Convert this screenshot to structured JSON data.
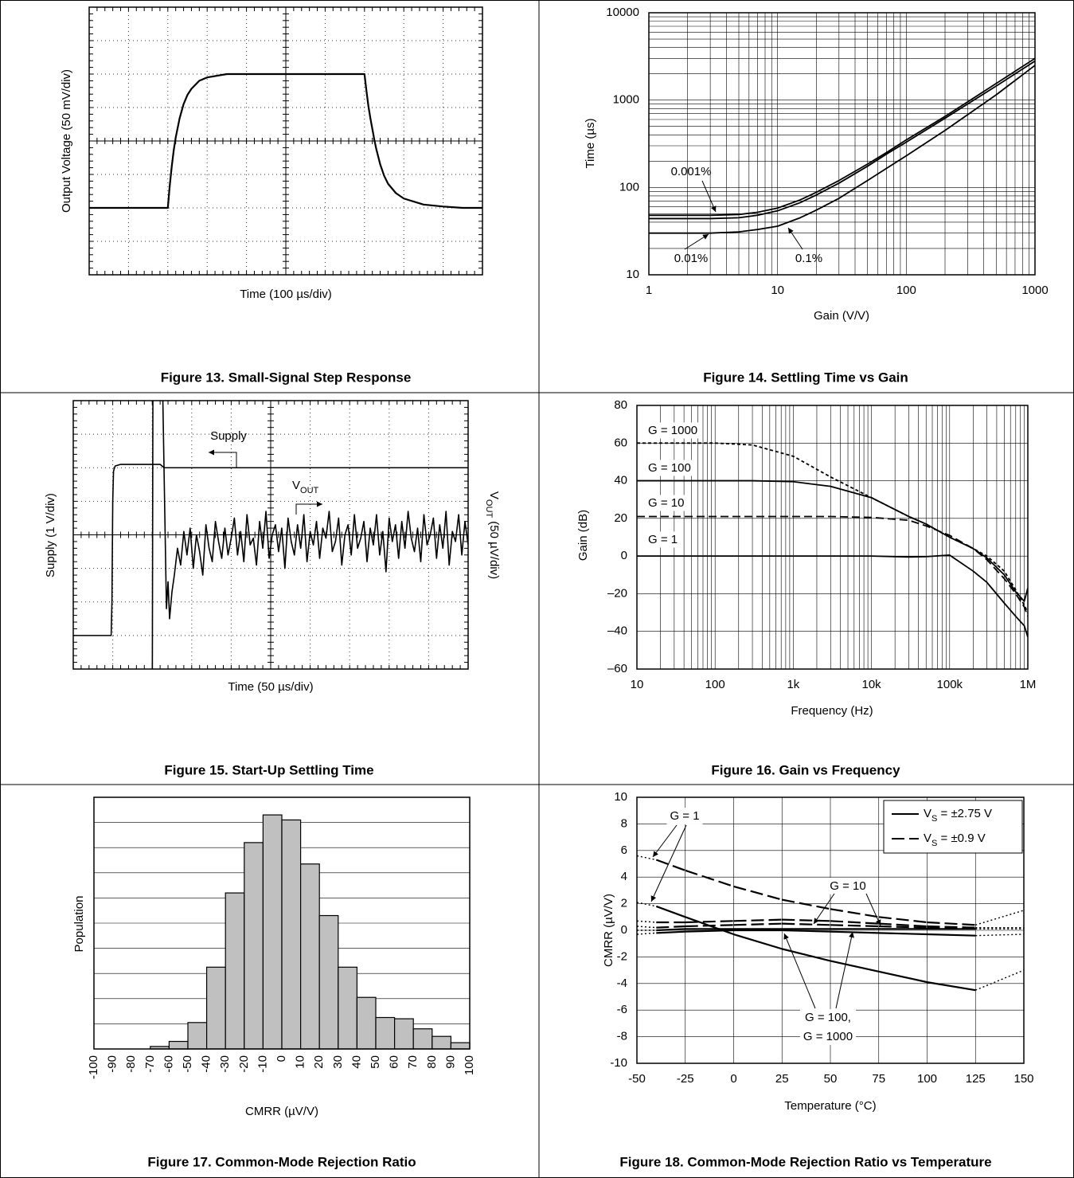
{
  "chart_data": [
    {
      "type": "line",
      "caption": "Figure 13. Small-Signal Step Response",
      "xlabel": "Time (100 µs/div)",
      "ylabel": "Output Voltage (50 mV/div)",
      "xlim": [
        0,
        1000
      ],
      "ylim": [
        -200,
        200
      ],
      "xticks": [
        0,
        100,
        200,
        300,
        400,
        500,
        600,
        700,
        800,
        900,
        1000
      ],
      "yticks": [
        -200,
        -150,
        -100,
        -50,
        0,
        50,
        100,
        150,
        200
      ],
      "xtick_labels": false,
      "ytick_labels": false,
      "grid": "both",
      "grid_style": "dotted",
      "center_cross": true,
      "x": [
        0,
        200,
        205,
        210,
        215,
        220,
        230,
        240,
        250,
        260,
        280,
        300,
        350,
        700,
        705,
        710,
        715,
        720,
        725,
        730,
        740,
        750,
        760,
        780,
        800,
        850,
        900,
        950,
        1000
      ],
      "series": [
        {
          "color": "#000000",
          "values": [
            -100,
            -100,
            -66,
            -38,
            -14,
            5,
            34,
            55,
            69,
            78,
            90,
            95,
            100,
            100,
            75,
            52,
            34,
            18,
            2,
            -12,
            -35,
            -52,
            -64,
            -78,
            -86,
            -95,
            -98,
            -100,
            -100
          ]
        }
      ]
    },
    {
      "type": "line",
      "caption": "Figure 14. Settling Time vs Gain",
      "xlabel": "Gain (V/V)",
      "ylabel": "Time (µs)",
      "xscale": "log",
      "yscale": "log",
      "xlim": [
        1,
        1000
      ],
      "ylim": [
        10,
        10000
      ],
      "xticks": [
        1,
        10,
        100,
        1000
      ],
      "yticks": [
        10,
        100,
        1000,
        10000
      ],
      "grid": "both",
      "minor_grid": true,
      "x": [
        1,
        2,
        3,
        5,
        7,
        10,
        15,
        20,
        30,
        50,
        70,
        100,
        200,
        500,
        1000
      ],
      "series": [
        {
          "name": "0.001%",
          "color": "#000000",
          "values": [
            48,
            48,
            48,
            49,
            52,
            58,
            72,
            88,
            120,
            185,
            250,
            350,
            650,
            1550,
            3000
          ]
        },
        {
          "name": "0.01%",
          "color": "#000000",
          "values": [
            44,
            44,
            44,
            45,
            48,
            54,
            67,
            82,
            112,
            175,
            240,
            330,
            620,
            1450,
            2800
          ]
        },
        {
          "name": "0.1%",
          "color": "#000000",
          "values": [
            30,
            30,
            30,
            31,
            33,
            36,
            45,
            55,
            75,
            120,
            165,
            230,
            450,
            1150,
            2500
          ]
        }
      ]
    },
    {
      "type": "line",
      "caption": "Figure 15. Start-Up Settling Time",
      "xlabel": "Time (50 µs/div)",
      "ylabel": "Supply (1 V/div)",
      "y2label": [
        "V",
        "OUT",
        " (50 µV/div)"
      ],
      "xlim": [
        0,
        500
      ],
      "ylim": [
        -4,
        4
      ],
      "y2lim": [
        -200,
        200
      ],
      "xticks": [
        0,
        50,
        100,
        150,
        200,
        250,
        300,
        350,
        400,
        450,
        500
      ],
      "yticks": [
        -4,
        -3,
        -2,
        -1,
        0,
        1,
        2,
        3,
        4
      ],
      "xtick_labels": false,
      "ytick_labels": false,
      "grid": "both",
      "grid_style": "dotted",
      "center_cross": true,
      "annotations": [
        [
          "Supply"
        ],
        [
          "V",
          "OUT"
        ]
      ],
      "series": [
        {
          "color": "#000000",
          "x": [
            0,
            48,
            49,
            50,
            51,
            53,
            60,
            110,
            115,
            500
          ],
          "values": [
            -3.0,
            -3.0,
            -2,
            1,
            1.9,
            2.05,
            2.1,
            2.1,
            2.0,
            2.0
          ]
        },
        {
          "color": "#000000",
          "axis": "y2",
          "x": [
            100,
            101,
            112,
            118,
            120,
            122,
            125,
            128,
            132,
            136,
            140,
            144,
            148,
            152,
            156,
            160,
            164,
            168,
            172,
            176,
            180,
            184,
            188,
            192,
            196,
            200,
            204,
            208,
            212,
            216,
            220,
            224,
            228,
            232,
            236,
            240,
            244,
            248,
            252,
            256,
            260,
            264,
            268,
            272,
            276,
            280,
            284,
            288,
            292,
            296,
            300,
            304,
            308,
            312,
            316,
            320,
            324,
            328,
            332,
            336,
            340,
            344,
            348,
            352,
            356,
            360,
            364,
            368,
            372,
            376,
            380,
            384,
            388,
            392,
            396,
            400,
            404,
            408,
            412,
            416,
            420,
            424,
            428,
            432,
            436,
            440,
            444,
            448,
            452,
            456,
            460,
            464,
            468,
            472,
            476,
            480,
            484,
            488,
            492,
            496,
            500
          ],
          "values": [
            -300,
            300,
            300,
            -110,
            -70,
            -125,
            -85,
            -60,
            -20,
            -45,
            5,
            -30,
            10,
            -50,
            0,
            -25,
            -60,
            15,
            -20,
            -40,
            20,
            -10,
            -35,
            10,
            -30,
            -5,
            25,
            -30,
            5,
            -40,
            30,
            -15,
            -5,
            -45,
            20,
            -20,
            35,
            -35,
            0,
            15,
            -25,
            10,
            -50,
            25,
            -10,
            -30,
            15,
            -20,
            30,
            -40,
            5,
            -15,
            20,
            -35,
            10,
            -5,
            35,
            -25,
            -10,
            25,
            -45,
            0,
            15,
            -30,
            30,
            -20,
            -5,
            20,
            -40,
            10,
            -15,
            30,
            -30,
            5,
            -55,
            25,
            -10,
            15,
            -35,
            20,
            -20,
            35,
            -5,
            -25,
            10,
            -40,
            30,
            -15,
            0,
            25,
            -35,
            15,
            -20,
            35,
            -45,
            5,
            -10,
            30,
            -30,
            20,
            -15
          ]
        }
      ]
    },
    {
      "type": "line",
      "caption": "Figure 16. Gain vs Frequency",
      "xlabel": "Frequency (Hz)",
      "ylabel": "Gain (dB)",
      "xscale": "log",
      "xlim": [
        10,
        1000000
      ],
      "ylim": [
        -60,
        80
      ],
      "xticks": [
        10,
        100,
        {
          "value": 1000,
          "label": "1k"
        },
        {
          "value": 10000,
          "label": "10k"
        },
        {
          "value": 100000,
          "label": "100k"
        },
        {
          "value": 1000000,
          "label": "1M"
        }
      ],
      "yticks": [
        {
          "value": -60,
          "label": "–60"
        },
        {
          "value": -40,
          "label": "–40"
        },
        {
          "value": -20,
          "label": "–20"
        },
        0,
        20,
        40,
        60,
        80
      ],
      "grid": "both",
      "minor_grid": true,
      "x": [
        10,
        100,
        300,
        1000,
        3000,
        10000,
        30000,
        50000,
        100000,
        200000,
        300000,
        500000,
        700000,
        900000,
        1000000
      ],
      "series": [
        {
          "name": "G = 1",
          "color": "#000000",
          "style": "solid",
          "values": [
            0,
            0,
            0,
            0,
            0,
            0,
            -0.5,
            -0.3,
            0.5,
            -8,
            -14,
            -25,
            -32,
            -37,
            -43
          ]
        },
        {
          "name": "G = 10",
          "color": "#000000",
          "style": "dashed",
          "values": [
            21,
            21,
            21,
            21,
            21,
            20.5,
            19,
            16,
            11,
            4,
            -2,
            -12,
            -20,
            -27,
            -32
          ]
        },
        {
          "name": "G = 100",
          "color": "#000000",
          "style": "solid",
          "values": [
            40,
            40,
            40,
            39.5,
            37,
            31,
            21,
            17,
            10,
            4,
            -1,
            -10,
            -19,
            -24,
            -17
          ]
        },
        {
          "name": "G = 1000",
          "color": "#000000",
          "style": "short-dashed",
          "values": [
            60,
            60,
            59,
            53,
            42,
            31,
            21,
            17,
            10,
            4,
            0,
            -8,
            -18,
            -26,
            -30
          ]
        }
      ]
    },
    {
      "type": "histogram",
      "caption": "Figure 17. Common-Mode Rejection Ratio",
      "xlabel": "CMRR (µV/V)",
      "ylabel": "Population",
      "xlim": [
        -100,
        100
      ],
      "ylim": [
        0,
        10
      ],
      "xticks": [
        -100,
        -90,
        -80,
        -70,
        -60,
        -50,
        -40,
        -30,
        -20,
        -10,
        0,
        10,
        20,
        30,
        40,
        50,
        60,
        70,
        80,
        90,
        100
      ],
      "yticks": [
        0,
        1,
        2,
        3,
        4,
        5,
        6,
        7,
        8,
        9,
        10
      ],
      "ytick_labels": false,
      "grid": "y",
      "color": "#c0c0c0",
      "bins": [
        -100,
        -90,
        -80,
        -70,
        -60,
        -50,
        -40,
        -30,
        -20,
        -10,
        0,
        10,
        20,
        30,
        40,
        50,
        60,
        70,
        80,
        90,
        100
      ],
      "counts": [
        0,
        0,
        0,
        0.1,
        0.3,
        1.05,
        3.25,
        6.2,
        8.2,
        9.3,
        9.1,
        7.35,
        5.3,
        3.25,
        2.05,
        1.25,
        1.2,
        0.8,
        0.5,
        0.25
      ]
    },
    {
      "type": "line",
      "caption": "Figure 18. Common-Mode Rejection Ratio vs Temperature",
      "xlabel": "Temperature (°C)",
      "ylabel": "CMRR (µV/V)",
      "xlim": [
        -50,
        150
      ],
      "ylim": [
        -10,
        10
      ],
      "xticks": [
        -50,
        -25,
        0,
        25,
        50,
        75,
        100,
        125,
        150
      ],
      "yticks": [
        -10,
        -8,
        -6,
        -4,
        -2,
        0,
        2,
        4,
        6,
        8,
        10
      ],
      "grid": "both",
      "measured_range": [
        -40,
        125
      ],
      "legend_position": "upper right",
      "legend": [
        {
          "name": [
            "V",
            "S",
            " = ±2.75 V"
          ],
          "style": "solid"
        },
        {
          "name": [
            "V",
            "S",
            " = ±0.9 V"
          ],
          "style": "long-dashed"
        }
      ],
      "annotations": [
        "G = 1",
        "G = 10",
        "G = 100,",
        "G = 1000"
      ],
      "x": [
        -50,
        -40,
        -25,
        0,
        25,
        50,
        75,
        100,
        125,
        150
      ],
      "series": [
        {
          "color": "#000000",
          "style": "solid",
          "values": [
            2.1,
            1.8,
            1.0,
            -0.3,
            -1.4,
            -2.3,
            -3.1,
            -3.9,
            -4.5,
            -3.0
          ]
        },
        {
          "color": "#000000",
          "style": "long-dashed",
          "values": [
            5.6,
            5.3,
            4.5,
            3.3,
            2.3,
            1.6,
            1.0,
            0.6,
            0.4,
            1.5
          ]
        },
        {
          "color": "#000000",
          "style": "solid",
          "values": [
            -0.3,
            -0.2,
            -0.1,
            0,
            0,
            -0.1,
            -0.2,
            -0.3,
            -0.4,
            -0.3
          ]
        },
        {
          "color": "#000000",
          "style": "solid",
          "values": [
            0,
            0,
            0.1,
            0.1,
            0.1,
            0.1,
            0.1,
            0.1,
            0.1,
            0.1
          ]
        },
        {
          "color": "#000000",
          "style": "long-dashed",
          "values": [
            0.7,
            0.6,
            0.6,
            0.7,
            0.8,
            0.7,
            0.5,
            0.3,
            0.2,
            0.2
          ]
        },
        {
          "color": "#000000",
          "style": "long-dashed",
          "values": [
            0.3,
            0.2,
            0.3,
            0.4,
            0.5,
            0.4,
            0.3,
            0.2,
            0.2,
            0.2
          ]
        }
      ]
    }
  ]
}
